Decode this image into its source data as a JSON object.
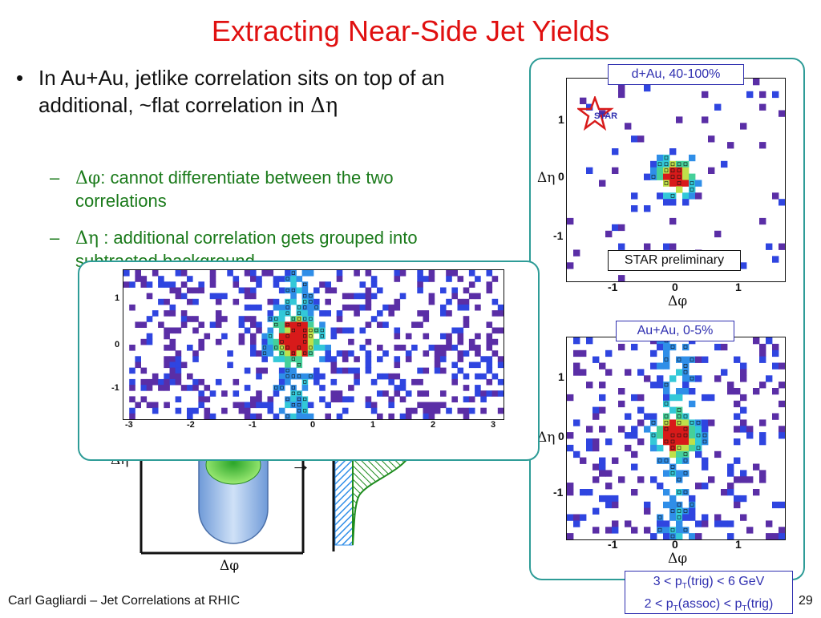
{
  "slide": {
    "title": "Extracting Near-Side Jet Yields",
    "bullets": {
      "main": "In Au+Au, jetlike correlation sits on top of an additional, ~flat correlation in",
      "main_symbol": "Δη",
      "bullet_char": "•",
      "sub": [
        {
          "dash": "–",
          "symbol": "Δφ",
          "text": ": cannot differentiate between the two correlations"
        },
        {
          "dash": "–",
          "symbol": "Δη",
          "text": " : additional correlation gets grouped into subtracted background"
        }
      ]
    },
    "footer": {
      "author_talk": "Carl Gagliardi – Jet Correlations at RHIC",
      "page_number": "29"
    },
    "trigger_box": {
      "line1": {
        "pre": "3 < p",
        "sub": "T",
        "post": "(trig) < 6 GeV"
      },
      "line2": {
        "pre1": "2 < p",
        "sub1": "T",
        "mid": "(assoc) < p",
        "sub2": "T",
        "post": "(trig)"
      }
    }
  },
  "plots": {
    "dau": {
      "legend": "d+Au, 40-100%",
      "badge": "STAR preliminary",
      "logo_text": "STAR",
      "xlabel": "Δφ",
      "ylabel": "Δη",
      "x_ticks": [
        "-1",
        "0",
        "1"
      ],
      "y_ticks": [
        "1",
        "0",
        "-1"
      ]
    },
    "auau": {
      "legend": "Au+Au, 0-5%",
      "xlabel": "Δφ",
      "ylabel": "Δη",
      "x_ticks": [
        "-1",
        "0",
        "1"
      ],
      "y_ticks": [
        "1",
        "0",
        "-1"
      ]
    },
    "wide": {
      "x_ticks": [
        "-3",
        "-2",
        "-1",
        "0",
        "1",
        "2",
        "3"
      ],
      "y_ticks": [
        "1",
        "0",
        "-1"
      ]
    },
    "schematic": {
      "xlabel": "Δφ",
      "ylabel": "Δη",
      "arrow": "→"
    }
  },
  "colors": {
    "title": "#e01010",
    "sub_bullets": "#1a7a1a",
    "frame": "#2e9c97",
    "legend": "#2f2fb0",
    "palette": [
      "#5a2ea6",
      "#2f45e0",
      "#2f8ee8",
      "#33c8d8",
      "#45d09a",
      "#bfe04a",
      "#d81a1a"
    ]
  }
}
